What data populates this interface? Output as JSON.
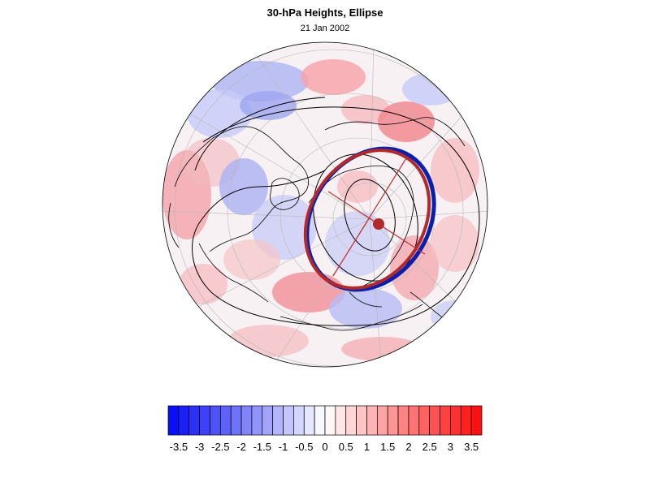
{
  "figure": {
    "title": "30-hPa Heights, Ellipse",
    "subtitle": "21 Jan 2002"
  },
  "colorbar": {
    "labels": [
      "-3.5",
      "-3",
      "-2.5",
      "-2",
      "-1.5",
      "-1",
      "-0.5",
      "0",
      "0.5",
      "1",
      "1.5",
      "2",
      "2.5",
      "3",
      "3.5"
    ],
    "min": -3.75,
    "max": 3.75,
    "step": 0.25,
    "neg_color": "#0a10f5",
    "pos_color": "#ff1010",
    "mid_color": "#ffffff"
  },
  "colors": {
    "ellipse_blue": "#0b1fae",
    "ellipse_red": "#b02a2a",
    "axes_red": "#c23030",
    "coast": "#000000",
    "grid": "#b8b8b8"
  }
}
